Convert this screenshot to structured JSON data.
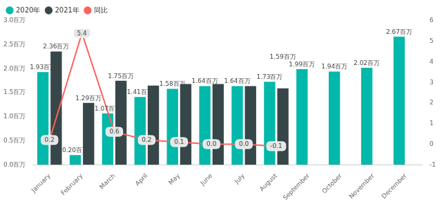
{
  "chart_data": {
    "type": "bar",
    "categories": [
      "January",
      "February",
      "March",
      "April",
      "May",
      "June",
      "July",
      "August",
      "September",
      "October",
      "November",
      "December"
    ],
    "series": [
      {
        "name": "2020年",
        "color": "#01b8aa",
        "values": [
          1.93,
          0.2,
          1.07,
          1.41,
          1.58,
          1.64,
          1.64,
          1.73,
          1.99,
          1.94,
          2.02,
          2.67
        ],
        "data_labels": true,
        "value_labels": [
          "1.93百万",
          "0.20百万",
          "1.07百万",
          "1.41百万",
          "1.58百万",
          "1.64百万",
          "1.64百万",
          "1.73百万",
          "1.99百万",
          "1.94百万",
          "2.02百万",
          "2.67百万"
        ]
      },
      {
        "name": "2021年",
        "color": "#374649",
        "values": [
          2.36,
          1.29,
          1.75,
          1.65,
          1.68,
          1.68,
          1.64,
          1.59,
          null,
          null,
          null,
          null
        ],
        "data_labels": true,
        "value_labels": [
          "2.36百万",
          "1.29百万",
          "1.75百万",
          null,
          null,
          null,
          null,
          "1.59百万",
          null,
          null,
          null,
          null
        ]
      },
      {
        "name": "同比",
        "type": "line",
        "axis": "y2",
        "color": "#fd625e",
        "marker": "none",
        "values": [
          0.2,
          5.4,
          0.6,
          0.2,
          0.1,
          0.0,
          0.0,
          -0.1,
          null,
          null,
          null,
          null
        ],
        "data_labels": true,
        "value_labels": [
          "0.2",
          "5.4",
          "0.6",
          "0.2",
          "0.1",
          "0.0",
          "0.0",
          "-0.1",
          null,
          null,
          null,
          null
        ]
      }
    ],
    "ylim": [
      0,
      3
    ],
    "yticks": [
      {
        "value": 0,
        "label": "0.0百万"
      },
      {
        "value": 0.5,
        "label": "0.5百万"
      },
      {
        "value": 1,
        "label": "1.0百万"
      },
      {
        "value": 1.5,
        "label": "1.5百万"
      },
      {
        "value": 2,
        "label": "2.0百万"
      },
      {
        "value": 2.5,
        "label": "2.5百万"
      },
      {
        "value": 3,
        "label": "3.0百万"
      }
    ],
    "y2lim": [
      -1,
      6
    ],
    "y2ticks": [
      -1,
      0,
      1,
      2,
      3,
      4,
      5,
      6
    ],
    "grid": false,
    "legend": "top-left"
  }
}
